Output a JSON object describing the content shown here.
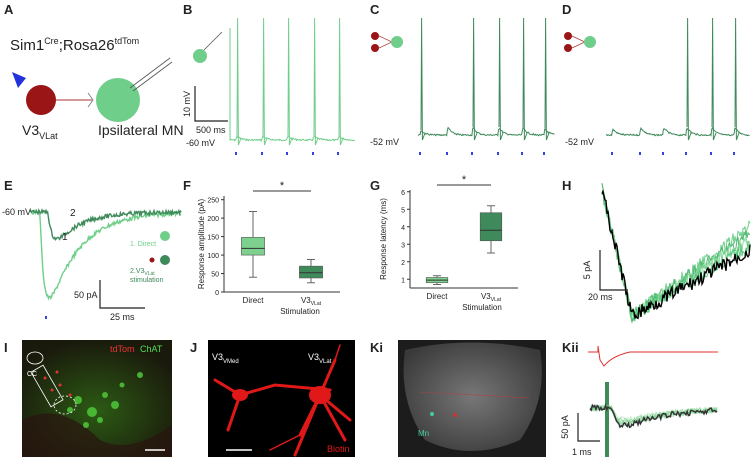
{
  "panels": {
    "a": {
      "letter": "A",
      "genotype": "Sim1",
      "genotype_sup": "Cre",
      "genotype_mid": ";Rosa26",
      "genotype_sup2": "tdTom",
      "neuron": "V3",
      "neuron_sub": "VLat",
      "target": "Ipsilateral MN"
    },
    "b": {
      "letter": "B",
      "scale_y": "10 mV",
      "scale_x": "500 ms",
      "potential": "-60 mV"
    },
    "c": {
      "letter": "C",
      "potential": "-52 mV"
    },
    "d": {
      "letter": "D",
      "potential": "-52 mV"
    },
    "e": {
      "letter": "E",
      "potential": "-60 mV",
      "trace_2": "2",
      "trace_1": "1",
      "legend_1": "1. Direct",
      "legend_2": "2.V3",
      "legend_2_sub": "VLat",
      "legend_2_rest": "stimulation",
      "scale_y": "50 pA",
      "scale_x": "25 ms"
    },
    "f": {
      "letter": "F",
      "ylabel": "Response amplitude (pA)",
      "ylim": [
        0,
        260
      ],
      "yticks": [
        0,
        50,
        100,
        150,
        200,
        250
      ],
      "categories": [
        "Direct",
        "V3"
      ],
      "category_2_sub": "VLat",
      "xlabel": "Stimulation",
      "significance": "*",
      "boxes": [
        {
          "min": 40,
          "q1": 100,
          "median": 118,
          "q3": 148,
          "max": 218,
          "color": "#7dd08e"
        },
        {
          "min": 25,
          "q1": 38,
          "median": 52,
          "q3": 70,
          "max": 88,
          "color": "#3e8a5a"
        }
      ]
    },
    "g": {
      "letter": "G",
      "ylabel": "Response latency (ms)",
      "ylim": [
        0.5,
        6.1
      ],
      "yticks": [
        1,
        2,
        3,
        4,
        5,
        6
      ],
      "categories": [
        "Direct",
        "V3"
      ],
      "category_2_sub": "VLat",
      "xlabel": "Stimulation",
      "significance": "*",
      "boxes": [
        {
          "min": 0.7,
          "q1": 0.8,
          "median": 0.95,
          "q3": 1.1,
          "max": 1.2,
          "color": "#7dd08e"
        },
        {
          "min": 2.5,
          "q1": 3.2,
          "median": 3.8,
          "q3": 4.8,
          "max": 5.2,
          "color": "#3e8a5a"
        }
      ]
    },
    "h": {
      "letter": "H",
      "scale_y": "5 pA",
      "scale_x": "20 ms"
    },
    "i": {
      "letter": "I",
      "label_red": "tdTom",
      "label_green": "ChAT",
      "region": "CC"
    },
    "j": {
      "letter": "J",
      "cell_1": "V3",
      "cell_1_sub": "VMed",
      "cell_2": "V3",
      "cell_2_sub": "VLat",
      "stain": "Biotin"
    },
    "ki": {
      "letter": "Ki",
      "region": "Mn"
    },
    "kii": {
      "letter": "Kii",
      "scale_y": "50 pA",
      "scale_x": "1 ms"
    }
  }
}
